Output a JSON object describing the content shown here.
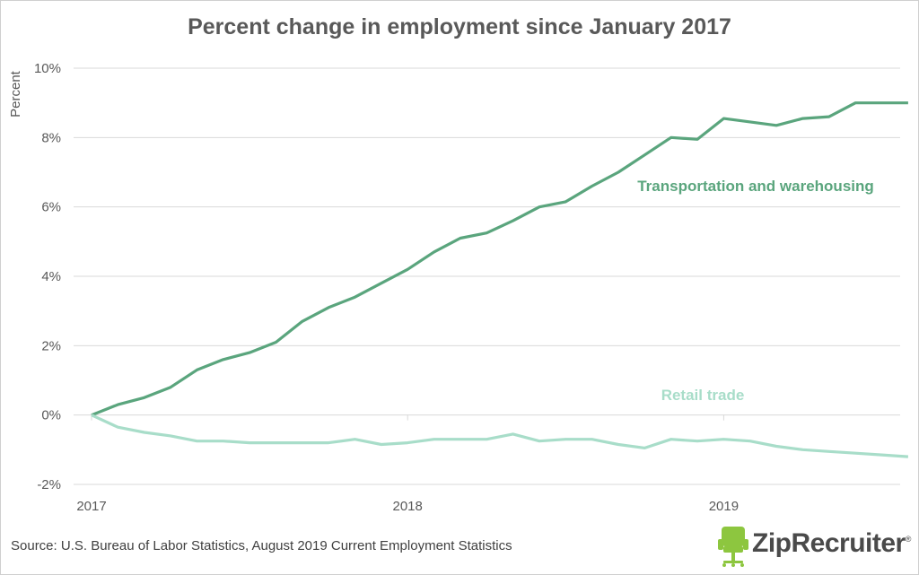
{
  "chart_data": {
    "type": "line",
    "title": "Percent change in employment since January 2017",
    "ylabel": "Percent",
    "xlabel": "",
    "ylim": [
      -2,
      10
    ],
    "yticks": [
      {
        "value": -2,
        "label": "-2%"
      },
      {
        "value": 0,
        "label": "0%"
      },
      {
        "value": 2,
        "label": "2%"
      },
      {
        "value": 4,
        "label": "4%"
      },
      {
        "value": 6,
        "label": "6%"
      },
      {
        "value": 8,
        "label": "8%"
      },
      {
        "value": 10,
        "label": "10%"
      }
    ],
    "xticks": [
      {
        "value": 0,
        "label": "2017"
      },
      {
        "value": 12,
        "label": "2018"
      },
      {
        "value": 24,
        "label": "2019"
      }
    ],
    "x_note": "months since January 2017",
    "grid": true,
    "series": [
      {
        "name": "Transportation and warehousing",
        "color": "#5aa57d",
        "values": [
          0,
          0.3,
          0.5,
          0.8,
          1.3,
          1.6,
          1.8,
          2.1,
          2.7,
          3.1,
          3.4,
          3.8,
          4.2,
          4.7,
          5.1,
          5.25,
          5.6,
          6.0,
          6.15,
          6.6,
          7.0,
          7.5,
          8.0,
          7.95,
          8.55,
          8.45,
          8.35,
          8.55,
          8.6,
          9.0,
          9.0,
          9.0
        ]
      },
      {
        "name": "Retail trade",
        "color": "#a8ddc9",
        "values": [
          0,
          -0.35,
          -0.5,
          -0.6,
          -0.75,
          -0.75,
          -0.8,
          -0.8,
          -0.8,
          -0.8,
          -0.7,
          -0.85,
          -0.8,
          -0.7,
          -0.7,
          -0.7,
          -0.55,
          -0.75,
          -0.7,
          -0.7,
          -0.85,
          -0.95,
          -0.7,
          -0.75,
          -0.7,
          -0.75,
          -0.9,
          -1.0,
          -1.05,
          -1.1,
          -1.15,
          -1.2
        ]
      }
    ]
  },
  "source": "Source: U.S. Bureau of Labor Statistics, August 2019 Current Employment Statistics",
  "logo_text": "ZipRecruiter",
  "logo_mark": "®",
  "colors": {
    "transportation": "#5aa57d",
    "retail": "#a8ddc9",
    "logo_green": "#8dc63f",
    "grid": "#d9d9d9"
  }
}
